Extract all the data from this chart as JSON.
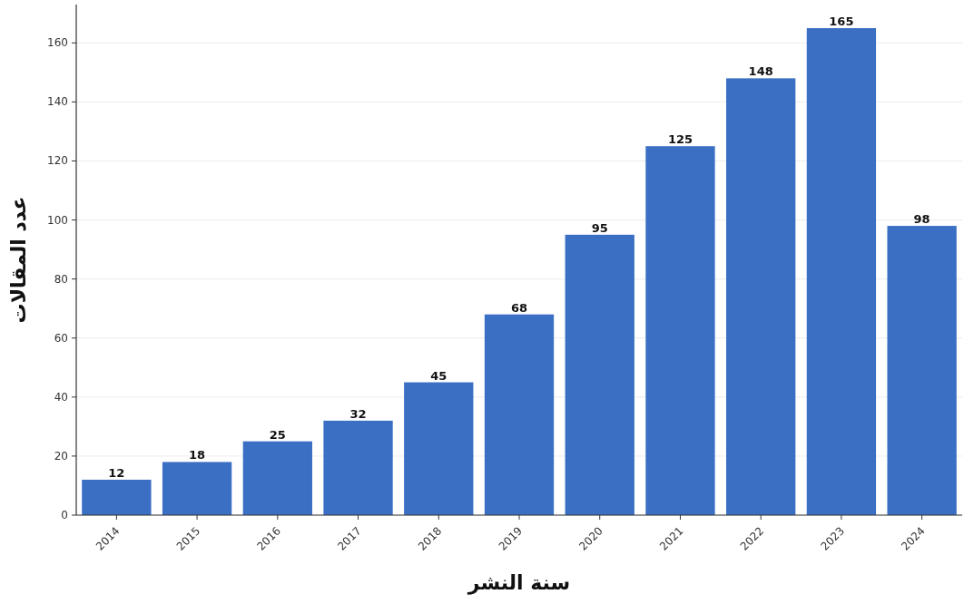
{
  "chart_data": {
    "type": "bar",
    "xlabel": "سنة النشر",
    "ylabel": "عدد المقالات",
    "categories": [
      "2014",
      "2015",
      "2016",
      "2017",
      "2018",
      "2019",
      "2020",
      "2021",
      "2022",
      "2023",
      "2024"
    ],
    "values": [
      12,
      18,
      25,
      32,
      45,
      68,
      95,
      125,
      148,
      165,
      98
    ],
    "color": "#3a6fc4",
    "ylim": [
      0,
      173
    ],
    "yticks": [
      0,
      20,
      40,
      60,
      80,
      100,
      120,
      140,
      160
    ],
    "grid": "y",
    "data_labels": true
  }
}
